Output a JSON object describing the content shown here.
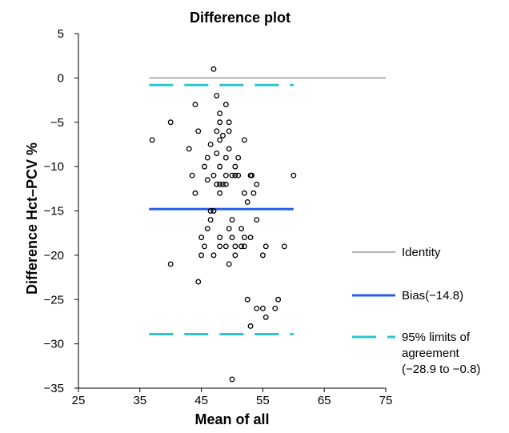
{
  "chart_data": {
    "type": "scatter",
    "title": "Difference plot",
    "xlabel": "Mean of all",
    "ylabel": "Difference Hct–PCV %",
    "xlim": [
      25,
      75
    ],
    "ylim": [
      -35,
      5
    ],
    "x_ticks": [
      25,
      35,
      45,
      55,
      65,
      75
    ],
    "y_ticks": [
      5,
      0,
      -5,
      -10,
      -15,
      -20,
      -25,
      -30,
      -35
    ],
    "grid": false,
    "points": [
      {
        "x": 47,
        "y": 1
      },
      {
        "x": 47.5,
        "y": -2
      },
      {
        "x": 49,
        "y": -3
      },
      {
        "x": 44,
        "y": -3
      },
      {
        "x": 48,
        "y": -4
      },
      {
        "x": 40,
        "y": -5
      },
      {
        "x": 48,
        "y": -5
      },
      {
        "x": 49.5,
        "y": -5
      },
      {
        "x": 44.5,
        "y": -6
      },
      {
        "x": 47.5,
        "y": -6
      },
      {
        "x": 48.5,
        "y": -6.5
      },
      {
        "x": 49.5,
        "y": -6
      },
      {
        "x": 37,
        "y": -7
      },
      {
        "x": 48,
        "y": -7
      },
      {
        "x": 52,
        "y": -7
      },
      {
        "x": 46.5,
        "y": -7.5
      },
      {
        "x": 43,
        "y": -8
      },
      {
        "x": 49.5,
        "y": -8
      },
      {
        "x": 47.5,
        "y": -8.5
      },
      {
        "x": 46,
        "y": -9
      },
      {
        "x": 49,
        "y": -9
      },
      {
        "x": 51,
        "y": -9
      },
      {
        "x": 45.5,
        "y": -10
      },
      {
        "x": 48,
        "y": -10
      },
      {
        "x": 50.5,
        "y": -10
      },
      {
        "x": 43.5,
        "y": -11
      },
      {
        "x": 47,
        "y": -11
      },
      {
        "x": 49,
        "y": -11
      },
      {
        "x": 50,
        "y": -11
      },
      {
        "x": 50.5,
        "y": -11
      },
      {
        "x": 51,
        "y": -11
      },
      {
        "x": 53,
        "y": -11
      },
      {
        "x": 53.2,
        "y": -11
      },
      {
        "x": 60,
        "y": -11
      },
      {
        "x": 46,
        "y": -11.5
      },
      {
        "x": 47.5,
        "y": -12
      },
      {
        "x": 48,
        "y": -12
      },
      {
        "x": 48.5,
        "y": -12
      },
      {
        "x": 49,
        "y": -12
      },
      {
        "x": 54,
        "y": -12
      },
      {
        "x": 48,
        "y": -13
      },
      {
        "x": 44,
        "y": -13
      },
      {
        "x": 52,
        "y": -13
      },
      {
        "x": 53.5,
        "y": -13
      },
      {
        "x": 52.5,
        "y": -14
      },
      {
        "x": 46.5,
        "y": -15
      },
      {
        "x": 47,
        "y": -15
      },
      {
        "x": 46.5,
        "y": -16
      },
      {
        "x": 50,
        "y": -16
      },
      {
        "x": 54,
        "y": -16
      },
      {
        "x": 46,
        "y": -17
      },
      {
        "x": 49.5,
        "y": -17
      },
      {
        "x": 51.5,
        "y": -17
      },
      {
        "x": 45,
        "y": -18
      },
      {
        "x": 48,
        "y": -18
      },
      {
        "x": 50,
        "y": -18
      },
      {
        "x": 52,
        "y": -18
      },
      {
        "x": 53,
        "y": -18
      },
      {
        "x": 45.5,
        "y": -19
      },
      {
        "x": 48,
        "y": -19
      },
      {
        "x": 49,
        "y": -19
      },
      {
        "x": 50.5,
        "y": -19
      },
      {
        "x": 51.5,
        "y": -19
      },
      {
        "x": 52,
        "y": -19
      },
      {
        "x": 55.5,
        "y": -19
      },
      {
        "x": 58.5,
        "y": -19
      },
      {
        "x": 45,
        "y": -20
      },
      {
        "x": 47,
        "y": -20
      },
      {
        "x": 50.5,
        "y": -20
      },
      {
        "x": 55,
        "y": -20
      },
      {
        "x": 40,
        "y": -21
      },
      {
        "x": 49.5,
        "y": -21
      },
      {
        "x": 44.5,
        "y": -23
      },
      {
        "x": 52.5,
        "y": -25
      },
      {
        "x": 57.5,
        "y": -25
      },
      {
        "x": 54,
        "y": -26
      },
      {
        "x": 55,
        "y": -26
      },
      {
        "x": 57,
        "y": -26
      },
      {
        "x": 55.5,
        "y": -27
      },
      {
        "x": 53,
        "y": -28
      },
      {
        "x": 50,
        "y": -34
      }
    ],
    "lines": [
      {
        "name": "Identity",
        "y": 0,
        "x_range": [
          36.5,
          75
        ],
        "color": "#9b9b9b",
        "style": "solid"
      },
      {
        "name": "Bias(−14.8)",
        "y": -14.8,
        "x_range": [
          36.5,
          60
        ],
        "color": "#2a5fe8",
        "style": "solid"
      },
      {
        "name": "95% limits of agreement (−28.9 to −0.8)",
        "y": -28.9,
        "x_range": [
          36.5,
          60
        ],
        "color": "#2ac6c9",
        "style": "dashed"
      },
      {
        "name": "95% limits of agreement (−28.9 to −0.8)",
        "y": -0.8,
        "x_range": [
          36.5,
          60
        ],
        "color": "#2ac6c9",
        "style": "dashed"
      }
    ],
    "legend_position": "right",
    "legend": [
      {
        "lines": [
          "Identity"
        ],
        "color": "#9b9b9b",
        "style": "solid"
      },
      {
        "lines": [
          "Bias(−14.8)"
        ],
        "color": "#2a5fe8",
        "style": "solid"
      },
      {
        "lines": [
          "95% limits of",
          "agreement",
          "(−28.9 to −0.8)"
        ],
        "color": "#2ac6c9",
        "style": "dashed"
      }
    ]
  }
}
